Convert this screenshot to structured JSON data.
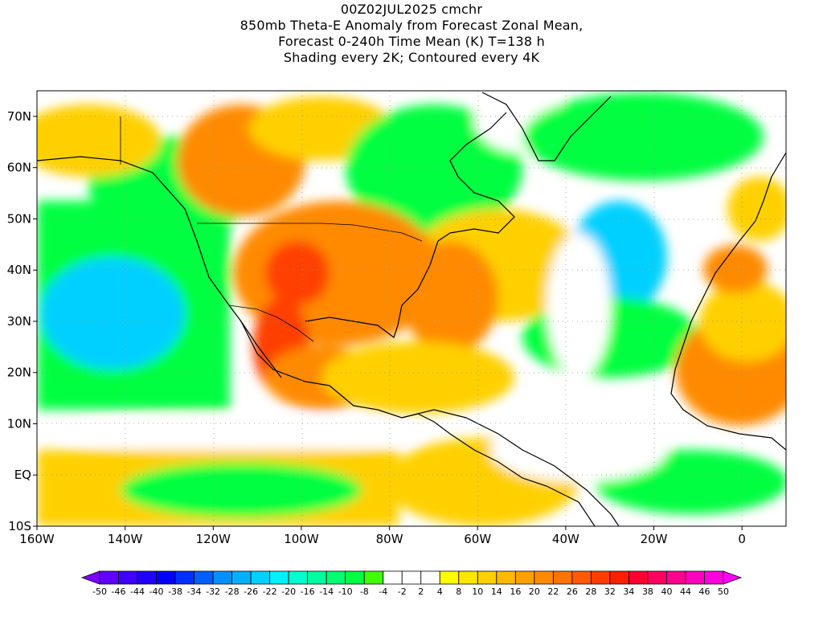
{
  "title": {
    "lines": [
      "00Z02JUL2025 cmchr",
      "850mb Theta-E Anomaly from Forecast Zonal Mean,",
      "Forecast 0-240h Time Mean (K) T=138 h",
      "Shading every 2K; Contoured every 4K"
    ]
  },
  "map": {
    "lat_labels": [
      "70N",
      "60N",
      "50N",
      "40N",
      "30N",
      "20N",
      "10N",
      "EQ",
      "10S"
    ],
    "lat_values": [
      70,
      60,
      50,
      40,
      30,
      20,
      10,
      0,
      -10
    ],
    "lon_labels": [
      "160W",
      "140W",
      "120W",
      "100W",
      "80W",
      "60W",
      "40W",
      "20W",
      "0"
    ],
    "lon_values": [
      -160,
      -140,
      -120,
      -100,
      -80,
      -60,
      -40,
      -20,
      0
    ],
    "extent": {
      "lon_min": -160,
      "lon_max": 10,
      "lat_min": -10,
      "lat_max": 75
    }
  },
  "colorbar": {
    "labels": [
      "-50",
      "-46",
      "-44",
      "-40",
      "-38",
      "-34",
      "-32",
      "-28",
      "-26",
      "-22",
      "-20",
      "-16",
      "-14",
      "-10",
      "-8",
      "-4",
      "-2",
      "2",
      "4",
      "8",
      "10",
      "14",
      "16",
      "20",
      "22",
      "26",
      "28",
      "32",
      "34",
      "38",
      "40",
      "44",
      "46",
      "50"
    ],
    "colors": [
      "#8000ff",
      "#6000ff",
      "#4000ff",
      "#2000ff",
      "#0000ff",
      "#0030ff",
      "#0060ff",
      "#0090ff",
      "#00b0ff",
      "#00d0ff",
      "#00f0ff",
      "#00ffd0",
      "#00ffa0",
      "#00ff70",
      "#00ff40",
      "#40ff00",
      "#ffffff",
      "#ffffff",
      "#ffffff",
      "#ffff00",
      "#ffe600",
      "#ffd000",
      "#ffb900",
      "#ffa000",
      "#ff8a00",
      "#ff7300",
      "#ff5a00",
      "#ff3f00",
      "#ff2000",
      "#ff0030",
      "#ff0060",
      "#ff0090",
      "#ff00c0",
      "#ff00e0",
      "#ff00ff"
    ]
  },
  "field_colors": {
    "hot": "#ff3f00",
    "warm": "#ff8a00",
    "mild": "#ffd000",
    "neutral": "#ffffff",
    "cool": "#00ff40",
    "cold": "#00d0ff"
  }
}
